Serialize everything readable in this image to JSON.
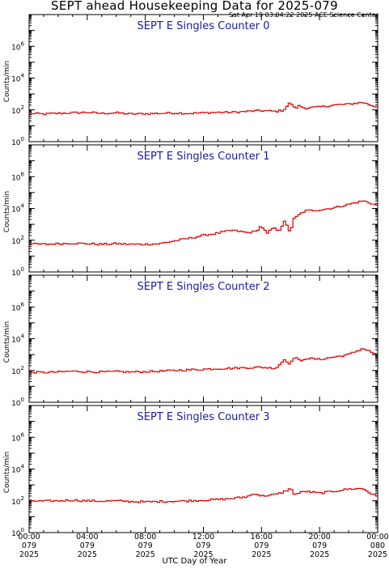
{
  "page": {
    "title": "SEPT ahead Housekeeping Data for 2025-079",
    "timestamp": "Sat Apr 19 03:04:22 2025 ACE Science Center",
    "xlabel": "UTC Day of Year"
  },
  "colors": {
    "trace": "#dd0000",
    "panel_title": "#1a1aa6",
    "axis": "#000000"
  },
  "chart_data": [
    {
      "type": "line",
      "title": "SEPT E Singles Counter 0",
      "ylabel": "Counts/min",
      "yscale": "log",
      "ylim": [
        1,
        100000000
      ],
      "yticks": [
        "10^0",
        "10^2",
        "10^4",
        "10^6"
      ],
      "xlim": [
        0,
        24
      ],
      "xticks": [
        "00:00 079 2025",
        "04:00 079 2025",
        "08:00 079 2025",
        "12:00 079 2025",
        "16:00 079 2025",
        "20:00 079 2025",
        "00:00 080 2025"
      ],
      "x": [
        0,
        1,
        2,
        3,
        4,
        5,
        6,
        7,
        8,
        9,
        10,
        11,
        12,
        13,
        14,
        15,
        16,
        17,
        17.5,
        18,
        18.3,
        18.6,
        19,
        20,
        21,
        22,
        23,
        23.5,
        24
      ],
      "values": [
        60,
        55,
        60,
        65,
        70,
        60,
        65,
        55,
        58,
        60,
        65,
        60,
        65,
        70,
        70,
        80,
        90,
        80,
        95,
        300,
        120,
        180,
        130,
        150,
        200,
        230,
        300,
        200,
        150
      ]
    },
    {
      "type": "line",
      "title": "SEPT E Singles Counter 1",
      "ylabel": "Counts/min",
      "yscale": "log",
      "ylim": [
        1,
        100000000
      ],
      "yticks": [
        "10^0",
        "10^2",
        "10^4",
        "10^6"
      ],
      "xlim": [
        0,
        24
      ],
      "xticks": [
        "00:00 079 2025",
        "04:00 079 2025",
        "08:00 079 2025",
        "12:00 079 2025",
        "16:00 079 2025",
        "20:00 079 2025",
        "00:00 080 2025"
      ],
      "x": [
        0,
        1,
        2,
        3,
        4,
        5,
        6,
        7,
        8,
        9,
        10,
        11,
        12,
        13,
        14,
        15,
        15.6,
        16,
        16.4,
        16.8,
        17.2,
        17.6,
        18,
        18.2,
        18.6,
        19,
        20,
        21,
        22,
        23,
        23.5,
        24
      ],
      "values": [
        60,
        55,
        60,
        65,
        60,
        55,
        60,
        55,
        55,
        60,
        90,
        130,
        200,
        280,
        420,
        300,
        350,
        800,
        250,
        600,
        400,
        1500,
        300,
        2000,
        4000,
        7000,
        8000,
        11000,
        18000,
        30000,
        22000,
        15000
      ]
    },
    {
      "type": "line",
      "title": "SEPT E Singles Counter 2",
      "ylabel": "Counts/min",
      "yscale": "log",
      "ylim": [
        1,
        100000000
      ],
      "yticks": [
        "10^0",
        "10^2",
        "10^4",
        "10^6"
      ],
      "xlim": [
        0,
        24
      ],
      "xticks": [
        "00:00 079 2025",
        "04:00 079 2025",
        "08:00 079 2025",
        "12:00 079 2025",
        "16:00 079 2025",
        "20:00 079 2025",
        "00:00 080 2025"
      ],
      "x": [
        0,
        1,
        2,
        3,
        4,
        5,
        6,
        7,
        8,
        9,
        10,
        11,
        12,
        13,
        14,
        15,
        16,
        17,
        17.6,
        18,
        18.3,
        18.7,
        19,
        20,
        21,
        22,
        23,
        23.5,
        24
      ],
      "values": [
        80,
        75,
        80,
        90,
        85,
        80,
        85,
        80,
        85,
        90,
        100,
        110,
        120,
        130,
        140,
        150,
        160,
        140,
        500,
        250,
        800,
        350,
        600,
        500,
        700,
        1000,
        2500,
        1500,
        1000
      ]
    },
    {
      "type": "line",
      "title": "SEPT E Singles Counter 3",
      "ylabel": "Counts/min",
      "yscale": "log",
      "ylim": [
        1,
        100000000
      ],
      "yticks": [
        "10^0",
        "10^2",
        "10^4",
        "10^6"
      ],
      "xlim": [
        0,
        24
      ],
      "xticks": [
        "00:00 079 2025",
        "04:00 079 2025",
        "08:00 079 2025",
        "12:00 079 2025",
        "16:00 079 2025",
        "20:00 079 2025",
        "00:00 080 2025"
      ],
      "x": [
        0,
        1,
        2,
        3,
        4,
        5,
        6,
        7,
        8,
        9,
        10,
        11,
        12,
        13,
        14,
        15,
        15.6,
        16,
        17,
        17.5,
        18,
        18.3,
        19,
        20,
        21,
        22,
        23,
        23.5,
        24
      ],
      "values": [
        100,
        95,
        100,
        110,
        100,
        95,
        100,
        90,
        85,
        90,
        95,
        100,
        110,
        120,
        140,
        180,
        300,
        200,
        250,
        350,
        600,
        250,
        400,
        300,
        400,
        550,
        600,
        300,
        180
      ]
    }
  ]
}
